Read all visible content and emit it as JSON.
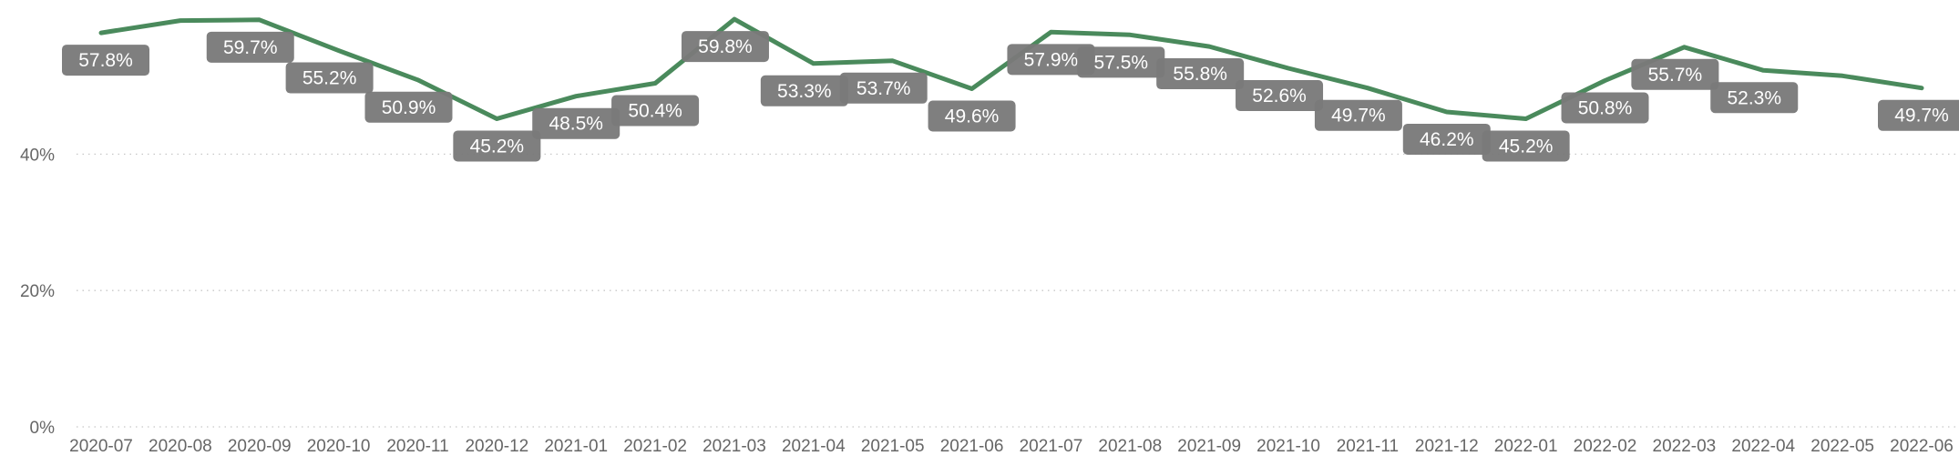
{
  "chart_data": {
    "type": "line",
    "title": "",
    "xlabel": "",
    "ylabel": "",
    "ylim": [
      0,
      60
    ],
    "yticks": [
      0,
      20,
      40
    ],
    "ytick_labels": [
      "0%",
      "20%",
      "40%"
    ],
    "grid": true,
    "categories": [
      "2020-07",
      "2020-08",
      "2020-09",
      "2020-10",
      "2020-11",
      "2020-12",
      "2021-01",
      "2021-02",
      "2021-03",
      "2021-04",
      "2021-05",
      "2021-06",
      "2021-07",
      "2021-08",
      "2021-09",
      "2021-10",
      "2021-11",
      "2021-12",
      "2022-01",
      "2022-02",
      "2022-03",
      "2022-04",
      "2022-05",
      "2022-06"
    ],
    "series": [
      {
        "values": [
          57.8,
          59.6,
          59.7,
          55.2,
          50.9,
          45.2,
          48.5,
          50.4,
          59.8,
          53.3,
          53.7,
          49.6,
          57.9,
          57.5,
          55.8,
          52.6,
          49.7,
          46.2,
          45.2,
          50.8,
          55.7,
          52.3,
          51.5,
          49.7
        ],
        "labels": [
          "57.8%",
          "",
          "59.7%",
          "55.2%",
          "50.9%",
          "45.2%",
          "48.5%",
          "50.4%",
          "59.8%",
          "53.3%",
          "53.7%",
          "49.6%",
          "57.9%",
          "57.5%",
          "55.8%",
          "52.6%",
          "49.7%",
          "46.2%",
          "45.2%",
          "50.8%",
          "55.7%",
          "52.3%",
          "",
          "49.7%"
        ],
        "color": "#4a8a5c"
      }
    ]
  }
}
